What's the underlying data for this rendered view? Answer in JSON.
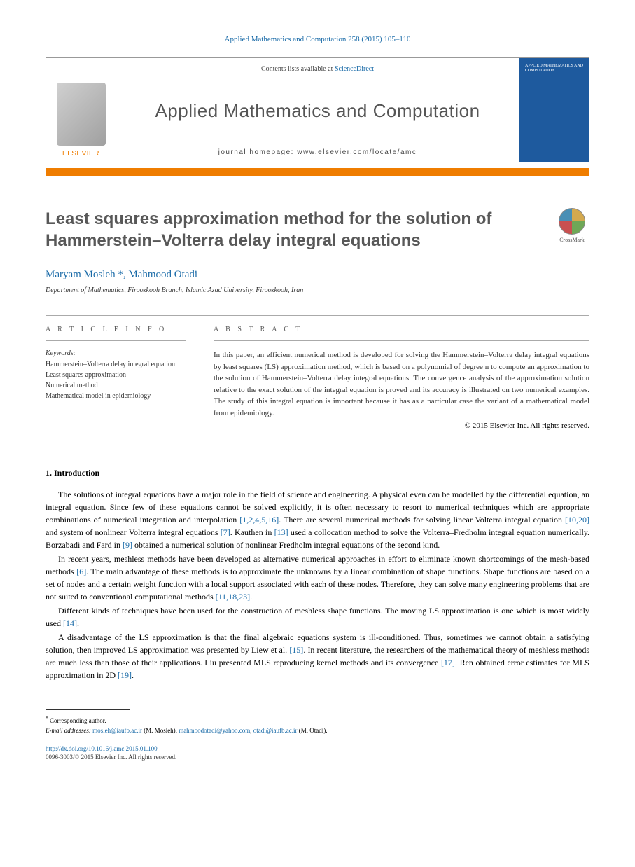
{
  "journal_ref": "Applied Mathematics and Computation 258 (2015) 105–110",
  "header": {
    "elsevier_label": "ELSEVIER",
    "contents_prefix": "Contents lists available at ",
    "contents_link": "ScienceDirect",
    "journal_title": "Applied Mathematics and Computation",
    "homepage_prefix": "journal homepage: ",
    "homepage_url": "www.elsevier.com/locate/amc",
    "cover_text": "APPLIED MATHEMATICS AND COMPUTATION"
  },
  "crossmark_label": "CrossMark",
  "title": "Least squares approximation method for the solution of Hammerstein–Volterra delay integral equations",
  "authors": [
    {
      "name": "Maryam Mosleh",
      "corresponding": true
    },
    {
      "name": "Mahmood Otadi",
      "corresponding": false
    }
  ],
  "affiliation": "Department of Mathematics, Firoozkooh Branch, Islamic Azad University, Firoozkooh, Iran",
  "info": {
    "article_info_heading": "A R T I C L E   I N F O",
    "abstract_heading": "A B S T R A C T",
    "keywords_label": "Keywords:",
    "keywords": [
      "Hammerstein–Volterra delay integral equation",
      "Least squares approximation",
      "Numerical method",
      "Mathematical model in epidemiology"
    ]
  },
  "abstract": "In this paper, an efficient numerical method is developed for solving the Hammerstein–Volterra delay integral equations by least squares (LS) approximation method, which is based on a polynomial of degree n to compute an approximation to the solution of Hammerstein–Volterra delay integral equations. The convergence analysis of the approximation solution relative to the exact solution of the integral equation is proved and its accuracy is illustrated on two numerical examples. The study of this integral equation is important because it has as a particular case the variant of a mathematical model from epidemiology.",
  "copyright": "© 2015 Elsevier Inc. All rights reserved.",
  "section1_heading": "1. Introduction",
  "paragraphs": {
    "p1a": "The solutions of integral equations have a major role in the field of science and engineering. A physical even can be modelled by the differential equation, an integral equation. Since few of these equations cannot be solved explicitly, it is often necessary to resort to numerical techniques which are appropriate combinations of numerical integration and interpolation ",
    "p1_ref1": "[1,2,4,5,16]",
    "p1b": ". There are several numerical methods for solving linear Volterra integral equation ",
    "p1_ref2": "[10,20]",
    "p1c": " and system of nonlinear Volterra integral equations ",
    "p1_ref3": "[7]",
    "p1d": ". Kauthen in ",
    "p1_ref4": "[13]",
    "p1e": " used a collocation method to solve the Volterra–Fredholm integral equation numerically. Borzabadi and Fard in ",
    "p1_ref5": "[9]",
    "p1f": " obtained a numerical solution of nonlinear Fredholm integral equations of the second kind.",
    "p2a": "In recent years, meshless methods have been developed as alternative numerical approaches in effort to eliminate known shortcomings of the mesh-based methods ",
    "p2_ref1": "[6]",
    "p2b": ". The main advantage of these methods is to approximate the unknowns by a linear combination of shape functions. Shape functions are based on a set of nodes and a certain weight function with a local support associated with each of these nodes. Therefore, they can solve many engineering problems that are not suited to conventional computational methods ",
    "p2_ref2": "[11,18,23]",
    "p2c": ".",
    "p3a": "Different kinds of techniques have been used for the construction of meshless shape functions. The moving LS approximation is one which is most widely used ",
    "p3_ref1": "[14]",
    "p3b": ".",
    "p4a": "A disadvantage of the LS approximation is that the final algebraic equations system is ill-conditioned. Thus, sometimes we cannot obtain a satisfying solution, then improved LS approximation was presented by Liew et al. ",
    "p4_ref1": "[15]",
    "p4b": ". In recent literature, the researchers of the mathematical theory of meshless methods are much less than those of their applications. Liu presented MLS reproducing kernel methods and its convergence ",
    "p4_ref2": "[17]",
    "p4c": ". Ren obtained error estimates for MLS approximation in 2D ",
    "p4_ref3": "[19]",
    "p4d": "."
  },
  "footnotes": {
    "corresponding": "Corresponding author.",
    "email_label": "E-mail addresses:",
    "emails": [
      {
        "addr": "mosleh@iaufb.ac.ir",
        "who": "(M. Mosleh)"
      },
      {
        "addr": "mahmoodotadi@yahoo.com",
        "who": ""
      },
      {
        "addr": "otadi@iaufb.ac.ir",
        "who": "(M. Otadi)"
      }
    ]
  },
  "doi": "http://dx.doi.org/10.1016/j.amc.2015.01.100",
  "issn_line": "0096-3003/© 2015 Elsevier Inc. All rights reserved.",
  "colors": {
    "link": "#1a6ba8",
    "orange": "#ef7d00",
    "title_gray": "#585858"
  }
}
